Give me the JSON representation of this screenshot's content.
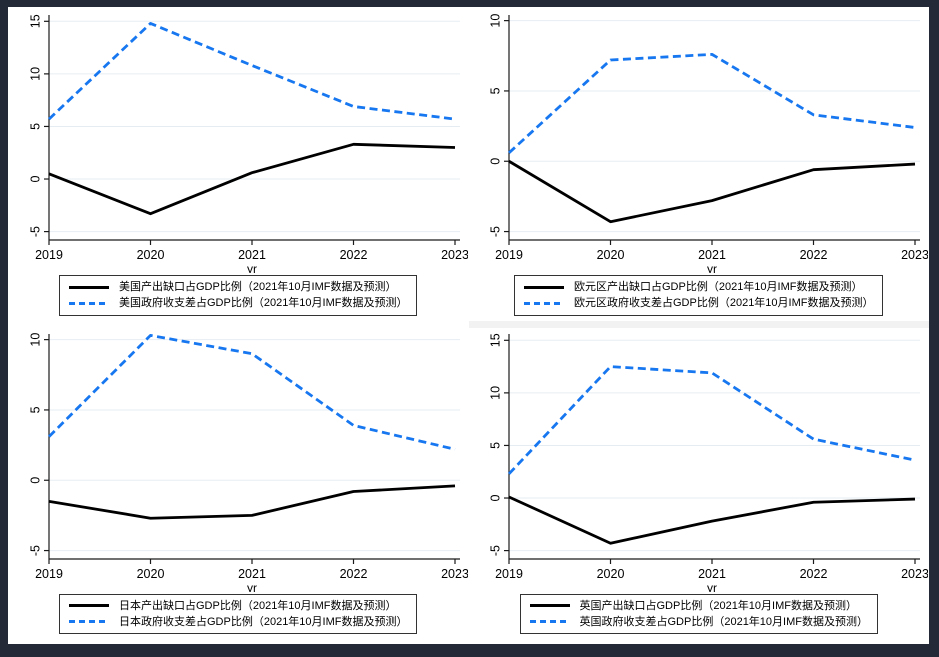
{
  "colors": {
    "frame_background": "#232937",
    "panel_background": "#ffffff",
    "grid": "#e6edf2",
    "axis": "#1a1a1a",
    "output_gap_line": "#000000",
    "fiscal_balance_line": "#1777f0"
  },
  "chart_data": [
    {
      "type": "line",
      "title": "",
      "x": [
        "2019",
        "2020",
        "2021",
        "2022",
        "2023"
      ],
      "xlabel": "yr",
      "y_ticks": [
        -5,
        0,
        5,
        10,
        15
      ],
      "ylim": [
        -5.8,
        15.6
      ],
      "grid": true,
      "legend_position": "bottom",
      "series": [
        {
          "name": "美国产出缺口占GDP比例（2021年10月IMF数据及预测）",
          "color": "#000000",
          "style": "solid",
          "values": [
            0.5,
            -3.3,
            0.6,
            3.3,
            3.0
          ]
        },
        {
          "name": "美国政府收支差占GDP比例（2021年10月IMF数据及预测）",
          "color": "#1777f0",
          "style": "dashed",
          "values": [
            5.7,
            14.8,
            10.8,
            6.9,
            5.7
          ]
        }
      ]
    },
    {
      "type": "line",
      "title": "",
      "x": [
        "2019",
        "2020",
        "2021",
        "2022",
        "2023"
      ],
      "xlabel": "yr",
      "y_ticks": [
        -5,
        0,
        5,
        10
      ],
      "ylim": [
        -5.6,
        10.4
      ],
      "grid": true,
      "legend_position": "bottom",
      "series": [
        {
          "name": "欧元区产出缺口占GDP比例（2021年10月IMF数据及预测）",
          "color": "#000000",
          "style": "solid",
          "values": [
            0.0,
            -4.3,
            -2.8,
            -0.6,
            -0.2
          ]
        },
        {
          "name": "欧元区政府收支差占GDP比例（2021年10月IMF数据及预测）",
          "color": "#1777f0",
          "style": "dashed",
          "values": [
            0.6,
            7.2,
            7.6,
            3.3,
            2.4
          ]
        }
      ]
    },
    {
      "type": "line",
      "title": "",
      "x": [
        "2019",
        "2020",
        "2021",
        "2022",
        "2023"
      ],
      "xlabel": "yr",
      "y_ticks": [
        -5,
        0,
        5,
        10
      ],
      "ylim": [
        -5.6,
        10.4
      ],
      "grid": true,
      "legend_position": "bottom",
      "series": [
        {
          "name": "日本产出缺口占GDP比例（2021年10月IMF数据及预测）",
          "color": "#000000",
          "style": "solid",
          "values": [
            -1.5,
            -2.7,
            -2.5,
            -0.8,
            -0.4
          ]
        },
        {
          "name": "日本政府收支差占GDP比例（2021年10月IMF数据及预测）",
          "color": "#1777f0",
          "style": "dashed",
          "values": [
            3.1,
            10.3,
            9.0,
            3.9,
            2.2
          ]
        }
      ]
    },
    {
      "type": "line",
      "title": "",
      "x": [
        "2019",
        "2020",
        "2021",
        "2022",
        "2023"
      ],
      "xlabel": "yr",
      "y_ticks": [
        -5,
        0,
        5,
        10,
        15
      ],
      "ylim": [
        -5.8,
        15.6
      ],
      "grid": true,
      "legend_position": "bottom",
      "series": [
        {
          "name": "英国产出缺口占GDP比例（2021年10月IMF数据及预测）",
          "color": "#000000",
          "style": "solid",
          "values": [
            0.1,
            -4.3,
            -2.2,
            -0.4,
            -0.1
          ]
        },
        {
          "name": "英国政府收支差占GDP比例（2021年10月IMF数据及预测）",
          "color": "#1777f0",
          "style": "dashed",
          "values": [
            2.3,
            12.5,
            11.9,
            5.6,
            3.6
          ]
        }
      ]
    }
  ]
}
